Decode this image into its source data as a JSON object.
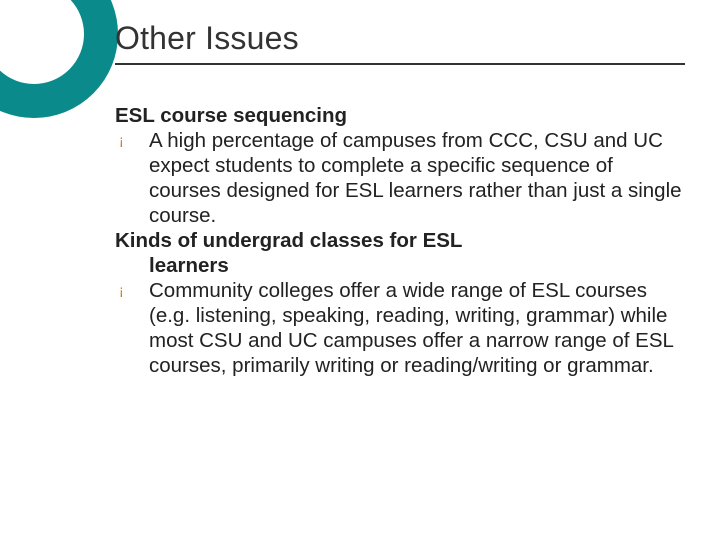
{
  "slide": {
    "title": "Other Issues",
    "title_color": "#333333",
    "title_fontsize": 32,
    "rule_color": "#333333",
    "body_fontsize": 20.5,
    "body_color": "#222222",
    "bullet_color": "#cc7a00",
    "bullet_char": "¡",
    "heading1": "ESL course sequencing",
    "bullet1": "A high percentage of campuses from CCC, CSU and UC expect students to complete a specific sequence of courses designed for ESL learners rather than just a single course.",
    "heading2_line1": "Kinds of undergrad classes for ESL",
    "heading2_line2": "learners",
    "bullet2": "Community colleges offer a wide range of ESL courses (e.g. listening, speaking, reading, writing, grammar) while most CSU and UC campuses offer a narrow range of ESL courses, primarily writing or reading/writing or grammar."
  },
  "decor": {
    "ring_color": "#0a8a8a",
    "ring_thickness": 34,
    "background": "#ffffff"
  }
}
